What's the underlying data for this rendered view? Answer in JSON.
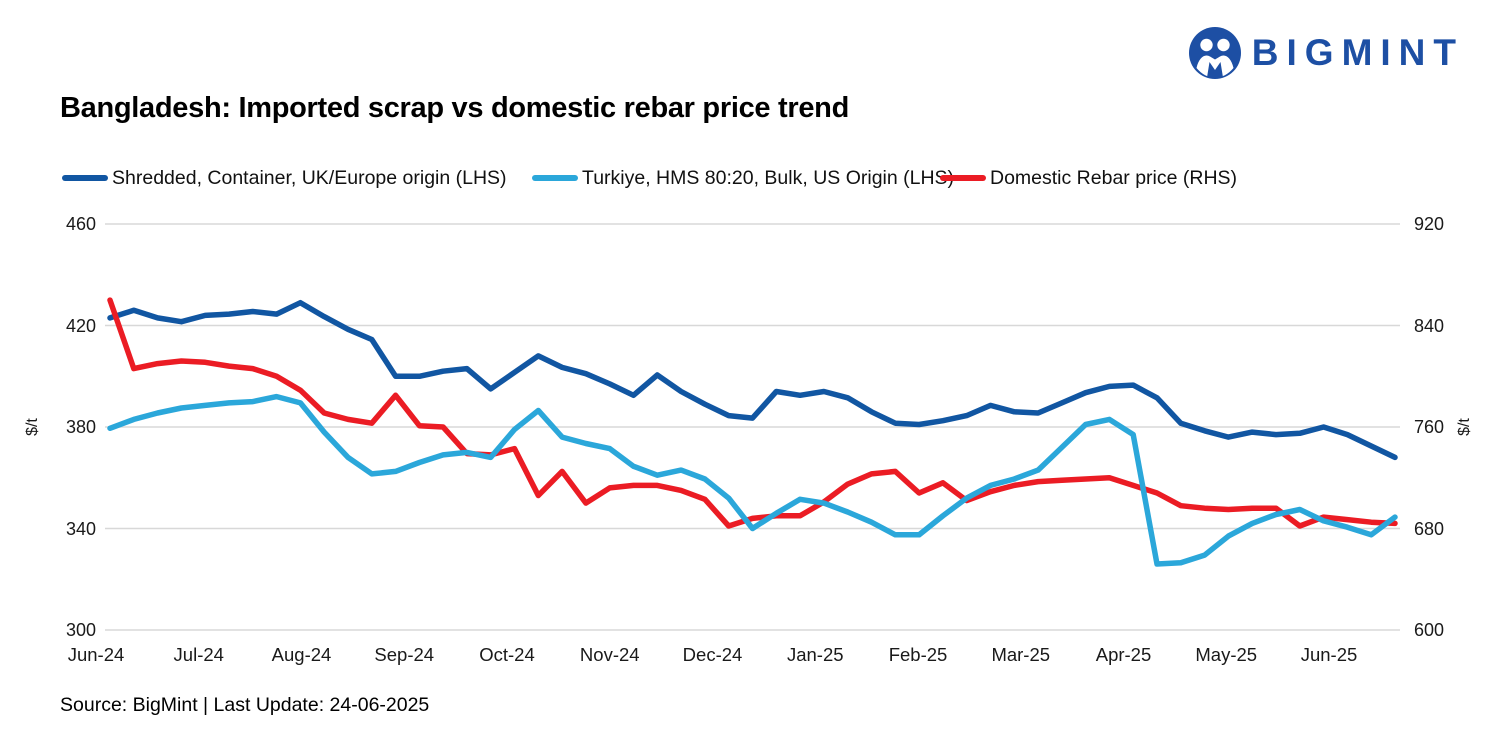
{
  "logo": {
    "text": "BIGMINT"
  },
  "title": "Bangladesh: Imported scrap vs domestic rebar price trend",
  "source_note": "Source: BigMint | Last Update: 24-06-2025",
  "colors": {
    "dark_blue": "#1156a2",
    "light_blue": "#2ba7da",
    "red": "#eb1c24",
    "logo_blue": "#1d4fa4",
    "gridline": "#d8d8d8",
    "text": "#1a1a1a"
  },
  "left_axis": {
    "title": "$/t",
    "ticks": [
      460,
      420,
      380,
      340,
      300
    ]
  },
  "right_axis": {
    "title": "$/t",
    "ticks": [
      920,
      840,
      760,
      680,
      600
    ]
  },
  "chart_data": {
    "type": "line",
    "title": "Bangladesh: Imported scrap vs domestic rebar price trend",
    "x_tick_labels": [
      "Jun-24",
      "Jul-24",
      "Aug-24",
      "Sep-24",
      "Oct-24",
      "Nov-24",
      "Dec-24",
      "Jan-25",
      "Feb-25",
      "Mar-25",
      "Apr-25",
      "May-25",
      "Jun-25"
    ],
    "frequency": "weekly",
    "left_ylim": [
      300,
      460
    ],
    "right_ylim": [
      600,
      920
    ],
    "grid": "horizontal",
    "legend_position": "top",
    "series": [
      {
        "name": "Shredded, Container, UK/Europe origin (LHS)",
        "axis": "left",
        "color": "#1156a2",
        "values": [
          423,
          426,
          423,
          421.5,
          424,
          424.5,
          425.5,
          424.5,
          429,
          423.5,
          418.5,
          414.5,
          400,
          400,
          402,
          403,
          395,
          401.5,
          408,
          403.5,
          401,
          397,
          392.5,
          400.5,
          394,
          389,
          384.5,
          383.5,
          394,
          392.5,
          394,
          391.5,
          386,
          381.5,
          381,
          382.5,
          384.5,
          388.5,
          386,
          385.5,
          389.5,
          393.5,
          396,
          396.5,
          391.5,
          381.5,
          378.5,
          376,
          378,
          377,
          377.5,
          380,
          377,
          372.5,
          368
        ]
      },
      {
        "name": "Turkiye, HMS 80:20, Bulk, US Origin (LHS)",
        "axis": "left",
        "color": "#2ba7da",
        "values": [
          379.5,
          383,
          385.5,
          387.5,
          388.5,
          389.5,
          390,
          392,
          389.5,
          378,
          368,
          361.5,
          362.5,
          366,
          369,
          370,
          368,
          379,
          386.5,
          376,
          373.5,
          371.5,
          364.5,
          361,
          363,
          359.5,
          352,
          340,
          346,
          351.5,
          350,
          346.5,
          342.5,
          337.5,
          337.5,
          345,
          352,
          357,
          359.5,
          363,
          372,
          381,
          383,
          377,
          326,
          326.5,
          329.5,
          337,
          342,
          345.5,
          347.5,
          343,
          340.5,
          337.5,
          344.5
        ]
      },
      {
        "name": "Domestic Rebar price (RHS)",
        "axis": "right",
        "color": "#eb1c24",
        "values": [
          860,
          806,
          810,
          812,
          811,
          808,
          806,
          800,
          789,
          771,
          766,
          763,
          785,
          761,
          760,
          739,
          738,
          743,
          706,
          725,
          700,
          712,
          714,
          714,
          710,
          703,
          682,
          688,
          690,
          690,
          701,
          715,
          723,
          725,
          708,
          716,
          702,
          709,
          714,
          717,
          718,
          719,
          720,
          714,
          708,
          698,
          696,
          695,
          696,
          696,
          682,
          689,
          687,
          685,
          684
        ]
      }
    ]
  }
}
